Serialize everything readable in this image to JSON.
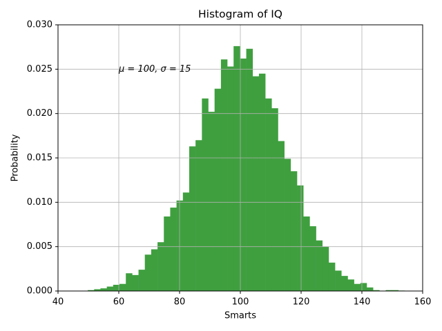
{
  "chart_data": {
    "type": "histogram",
    "title": "Histogram of IQ",
    "xlabel": "Smarts",
    "ylabel": "Probability",
    "annotation": "μ = 100,  σ = 15",
    "bins": [
      49.8,
      51.89,
      53.97,
      56.06,
      58.14,
      60.23,
      62.32,
      64.4,
      66.49,
      68.57,
      70.66,
      72.75,
      74.83,
      76.92,
      79.0,
      81.09,
      83.18,
      85.26,
      87.35,
      89.43,
      91.52,
      93.61,
      95.69,
      97.78,
      99.86,
      101.95,
      104.04,
      106.12,
      108.21,
      110.29,
      112.38,
      114.47,
      116.55,
      118.64,
      120.72,
      122.81,
      124.9,
      126.98,
      129.07,
      131.15,
      133.24,
      135.33,
      137.41,
      139.5,
      141.58,
      143.67,
      145.76,
      147.84,
      149.93,
      152.01,
      154.1
    ],
    "values": [
      0.0001,
      0.0002,
      0.0003,
      0.0005,
      0.0007,
      0.0008,
      0.002,
      0.0018,
      0.0024,
      0.0041,
      0.0047,
      0.0055,
      0.0084,
      0.0094,
      0.0102,
      0.0111,
      0.0163,
      0.017,
      0.0217,
      0.0202,
      0.0228,
      0.0261,
      0.0253,
      0.0276,
      0.0262,
      0.0273,
      0.0242,
      0.0245,
      0.0217,
      0.0206,
      0.0169,
      0.0149,
      0.0135,
      0.0119,
      0.0084,
      0.0073,
      0.0057,
      0.005,
      0.0032,
      0.0023,
      0.0017,
      0.0013,
      0.0008,
      0.0009,
      0.0004,
      0.0001,
      0.0,
      0.0001,
      0.0001,
      5e-05
    ],
    "color": "#3f9f3f",
    "xlim": [
      40,
      160
    ],
    "xticks": [
      40,
      60,
      80,
      100,
      120,
      140,
      160
    ],
    "ylim": [
      0,
      0.03
    ],
    "yticks": [
      {
        "value": 0,
        "label": "0.000"
      },
      {
        "value": 0.005,
        "label": "0.005"
      },
      {
        "value": 0.01,
        "label": "0.010"
      },
      {
        "value": 0.015,
        "label": "0.015"
      },
      {
        "value": 0.02,
        "label": "0.020"
      },
      {
        "value": 0.025,
        "label": "0.025"
      },
      {
        "value": 0.03,
        "label": "0.030"
      }
    ],
    "grid": true
  }
}
